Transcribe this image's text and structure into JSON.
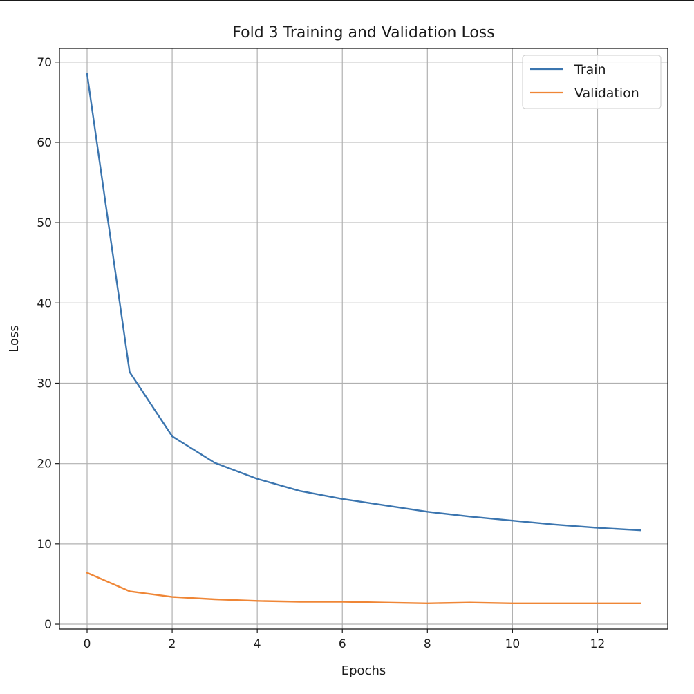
{
  "chart_data": {
    "type": "line",
    "title": "Fold 3 Training and Validation Loss",
    "xlabel": "Epochs",
    "ylabel": "Loss",
    "x": [
      0,
      1,
      2,
      3,
      4,
      5,
      6,
      7,
      8,
      9,
      10,
      11,
      12,
      13
    ],
    "xlim": [
      -0.65,
      13.65
    ],
    "ylim": [
      -0.6,
      71.7
    ],
    "xticks": [
      0,
      2,
      4,
      6,
      8,
      10,
      12
    ],
    "yticks": [
      0,
      10,
      20,
      30,
      40,
      50,
      60,
      70
    ],
    "grid": true,
    "legend_position": "top-right",
    "series": [
      {
        "name": "Train",
        "color": "#3b75af",
        "values": [
          68.5,
          31.4,
          23.4,
          20.1,
          18.1,
          16.6,
          15.6,
          14.8,
          14.0,
          13.4,
          12.9,
          12.4,
          12.0,
          11.7
        ]
      },
      {
        "name": "Validation",
        "color": "#ef8636",
        "values": [
          6.4,
          4.1,
          3.4,
          3.1,
          2.9,
          2.8,
          2.8,
          2.7,
          2.6,
          2.7,
          2.6,
          2.6,
          2.6,
          2.6
        ]
      }
    ]
  }
}
